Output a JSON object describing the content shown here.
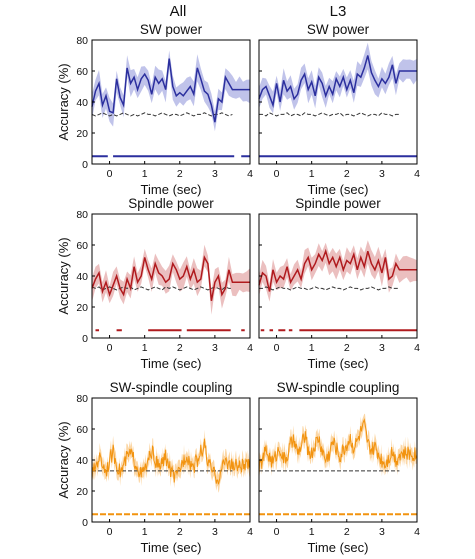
{
  "figure": {
    "columns": [
      "All",
      "L3"
    ],
    "ylabel": "Accuracy (%)",
    "xlabel": "Time (sec)"
  },
  "colors": {
    "sw": "#2b2f9e",
    "sw_fill": "#b9bde8",
    "spindle": "#b01a1e",
    "spindle_fill": "#e9b8b8",
    "coupling": "#f2930f",
    "coupling_fill": "#fbd29a",
    "chance": "#333333"
  },
  "chart_data": [
    {
      "type": "line",
      "title": "SW power",
      "xlabel": "Time (sec)",
      "ylabel": "Accuracy (%)",
      "xlim": [
        -0.5,
        4
      ],
      "ylim": [
        0,
        80
      ],
      "xticks": [
        0,
        1,
        2,
        3,
        4
      ],
      "yticks": [
        0,
        20,
        40,
        60,
        80
      ],
      "color_key": "sw",
      "fill_key": "sw_fill",
      "dt": 0.1,
      "series": [
        {
          "values": [
            37,
            47,
            52,
            38,
            44,
            34,
            33,
            55,
            43,
            38,
            62,
            52,
            56,
            48,
            55,
            58,
            54,
            45,
            56,
            52,
            55,
            48,
            68,
            50,
            44,
            46,
            44,
            47,
            50,
            45,
            62,
            55,
            47,
            45,
            38,
            27,
            42,
            40,
            56,
            52,
            48
          ]
        },
        {
          "values": [
            32,
            31,
            32,
            33,
            32,
            31,
            32,
            31,
            32,
            33,
            32,
            31,
            32,
            31,
            32,
            33,
            32,
            32,
            31,
            32,
            33,
            32,
            31,
            32,
            32,
            31,
            32,
            33,
            32,
            31,
            32,
            32,
            33,
            32,
            31,
            32,
            32,
            33,
            32,
            31,
            32
          ]
        }
      ],
      "band_halfwidth": 7,
      "significance": {
        "y": 5,
        "segments": [
          [
            -0.5,
            -0.05
          ],
          [
            0.1,
            3.55
          ],
          [
            3.75,
            4
          ]
        ]
      }
    },
    {
      "type": "line",
      "title": "SW power",
      "xlabel": "Time (sec)",
      "ylabel": "Accuracy (%)",
      "xlim": [
        -0.5,
        4
      ],
      "ylim": [
        0,
        80
      ],
      "xticks": [
        0,
        1,
        2,
        3,
        4
      ],
      "yticks": [
        0,
        20,
        40,
        60,
        80
      ],
      "color_key": "sw",
      "fill_key": "sw_fill",
      "dt": 0.1,
      "series": [
        {
          "values": [
            42,
            48,
            50,
            44,
            38,
            52,
            40,
            54,
            47,
            50,
            42,
            45,
            54,
            58,
            48,
            53,
            44,
            56,
            52,
            44,
            50,
            45,
            55,
            50,
            56,
            48,
            54,
            46,
            58,
            56,
            62,
            70,
            59,
            54,
            50,
            55,
            52,
            56,
            64,
            52,
            60
          ]
        },
        {
          "values": [
            32,
            32,
            31,
            33,
            32,
            31,
            32,
            32,
            33,
            31,
            32,
            32,
            31,
            33,
            32,
            32,
            31,
            32,
            33,
            32,
            31,
            32,
            32,
            33,
            31,
            32,
            32,
            31,
            32,
            33,
            32,
            31,
            32,
            32,
            31,
            33,
            32,
            32,
            31,
            32,
            32
          ]
        }
      ],
      "band_halfwidth": 7,
      "significance": {
        "y": 5,
        "segments": [
          [
            -0.5,
            4
          ]
        ]
      }
    },
    {
      "type": "line",
      "title": "Spindle power",
      "xlabel": "Time (sec)",
      "ylabel": "Accuracy (%)",
      "xlim": [
        -0.5,
        4
      ],
      "ylim": [
        0,
        80
      ],
      "xticks": [
        0,
        1,
        2,
        3,
        4
      ],
      "yticks": [
        0,
        20,
        40,
        60,
        80
      ],
      "color_key": "spindle",
      "fill_key": "spindle_fill",
      "dt": 0.1,
      "series": [
        {
          "values": [
            32,
            38,
            42,
            30,
            36,
            28,
            34,
            40,
            32,
            28,
            38,
            32,
            46,
            36,
            40,
            52,
            44,
            38,
            48,
            42,
            40,
            36,
            38,
            48,
            44,
            38,
            40,
            46,
            38,
            44,
            36,
            38,
            52,
            48,
            24,
            36,
            40,
            28,
            32,
            44,
            36
          ]
        },
        {
          "values": [
            33,
            32,
            33,
            31,
            32,
            33,
            32,
            31,
            32,
            33,
            32,
            33,
            31,
            32,
            33,
            32,
            31,
            32,
            33,
            32,
            31,
            33,
            32,
            33,
            32,
            31,
            32,
            33,
            32,
            31,
            32,
            33,
            32,
            31,
            32,
            33,
            32,
            31,
            33,
            32,
            32
          ]
        }
      ],
      "band_halfwidth": 7,
      "significance": {
        "y": 5,
        "segments": [
          [
            -0.4,
            -0.3
          ],
          [
            0.2,
            0.35
          ],
          [
            1.1,
            2.05
          ],
          [
            2.2,
            3.45
          ],
          [
            3.75,
            3.85
          ]
        ]
      }
    },
    {
      "type": "line",
      "title": "Spindle power",
      "xlabel": "Time (sec)",
      "ylabel": "Accuracy (%)",
      "xlim": [
        -0.5,
        4
      ],
      "ylim": [
        0,
        80
      ],
      "xticks": [
        0,
        1,
        2,
        3,
        4
      ],
      "yticks": [
        0,
        20,
        40,
        60,
        80
      ],
      "color_key": "spindle",
      "fill_key": "spindle_fill",
      "dt": 0.1,
      "series": [
        {
          "values": [
            34,
            42,
            40,
            30,
            44,
            36,
            40,
            38,
            46,
            36,
            40,
            44,
            38,
            48,
            52,
            44,
            48,
            54,
            50,
            56,
            48,
            52,
            46,
            52,
            44,
            50,
            48,
            54,
            44,
            52,
            46,
            56,
            48,
            44,
            50,
            42,
            52,
            38,
            40,
            48,
            44
          ]
        },
        {
          "values": [
            32,
            32,
            33,
            32,
            31,
            32,
            33,
            32,
            32,
            31,
            32,
            33,
            32,
            32,
            31,
            32,
            33,
            32,
            32,
            31,
            32,
            33,
            32,
            32,
            31,
            32,
            33,
            32,
            32,
            31,
            32,
            32,
            33,
            32,
            31,
            32,
            32,
            33,
            32,
            32,
            32
          ]
        }
      ],
      "band_halfwidth": 7,
      "significance": {
        "y": 5,
        "segments": [
          [
            -0.45,
            -0.35
          ],
          [
            -0.2,
            -0.1
          ],
          [
            0.05,
            0.25
          ],
          [
            0.35,
            0.45
          ],
          [
            0.65,
            4
          ]
        ]
      }
    },
    {
      "type": "line",
      "title": "SW-spindle coupling",
      "xlabel": "Time (sec)",
      "ylabel": "Accuracy (%)",
      "xlim": [
        -0.5,
        4
      ],
      "ylim": [
        0,
        80
      ],
      "xticks": [
        0,
        1,
        2,
        3,
        4
      ],
      "yticks": [
        0,
        20,
        40,
        60,
        80
      ],
      "color_key": "coupling",
      "fill_key": "coupling_fill",
      "dt": 0.02,
      "noise": 5,
      "series": [
        {
          "values": [
            30,
            36,
            42,
            38,
            33,
            40,
            45,
            38,
            32,
            36,
            42,
            44,
            40,
            36,
            30,
            34,
            38,
            46,
            40,
            35,
            38,
            42,
            36,
            30,
            28,
            34,
            40,
            44,
            38,
            36,
            40,
            45,
            50,
            38,
            34,
            30,
            28,
            34,
            40,
            38,
            36
          ]
        },
        {
          "values": [
            33,
            33,
            33,
            33,
            33,
            33,
            33,
            33,
            33,
            33,
            33,
            33,
            33,
            33,
            33,
            33,
            33,
            33,
            33,
            33,
            33,
            33,
            33,
            33,
            33,
            33,
            33,
            33,
            33,
            33,
            33,
            33,
            33,
            33,
            33,
            33,
            33,
            33,
            33,
            33,
            33
          ]
        }
      ],
      "band_halfwidth": 5,
      "significance": {
        "y": 5,
        "segments": [
          [
            -0.5,
            4
          ]
        ],
        "dashed": true
      }
    },
    {
      "type": "line",
      "title": "SW-spindle coupling",
      "xlabel": "Time (sec)",
      "ylabel": "Accuracy (%)",
      "xlim": [
        -0.5,
        4
      ],
      "ylim": [
        0,
        80
      ],
      "xticks": [
        0,
        1,
        2,
        3,
        4
      ],
      "yticks": [
        0,
        20,
        40,
        60,
        80
      ],
      "color_key": "coupling",
      "fill_key": "coupling_fill",
      "dt": 0.02,
      "noise": 5,
      "series": [
        {
          "values": [
            34,
            40,
            46,
            42,
            38,
            44,
            48,
            40,
            42,
            50,
            52,
            44,
            48,
            56,
            46,
            44,
            50,
            54,
            46,
            40,
            44,
            52,
            48,
            42,
            46,
            50,
            54,
            48,
            52,
            58,
            62,
            50,
            46,
            48,
            44,
            40,
            38,
            42,
            46,
            40,
            44
          ]
        },
        {
          "values": [
            33,
            33,
            33,
            33,
            33,
            33,
            33,
            33,
            33,
            33,
            33,
            33,
            33,
            33,
            33,
            33,
            33,
            33,
            33,
            33,
            33,
            33,
            33,
            33,
            33,
            33,
            33,
            33,
            33,
            33,
            33,
            33,
            33,
            33,
            33,
            33,
            33,
            33,
            33,
            33,
            33
          ]
        }
      ],
      "band_halfwidth": 5,
      "significance": {
        "y": 5,
        "segments": [
          [
            -0.5,
            4
          ]
        ],
        "dashed": true
      }
    }
  ]
}
